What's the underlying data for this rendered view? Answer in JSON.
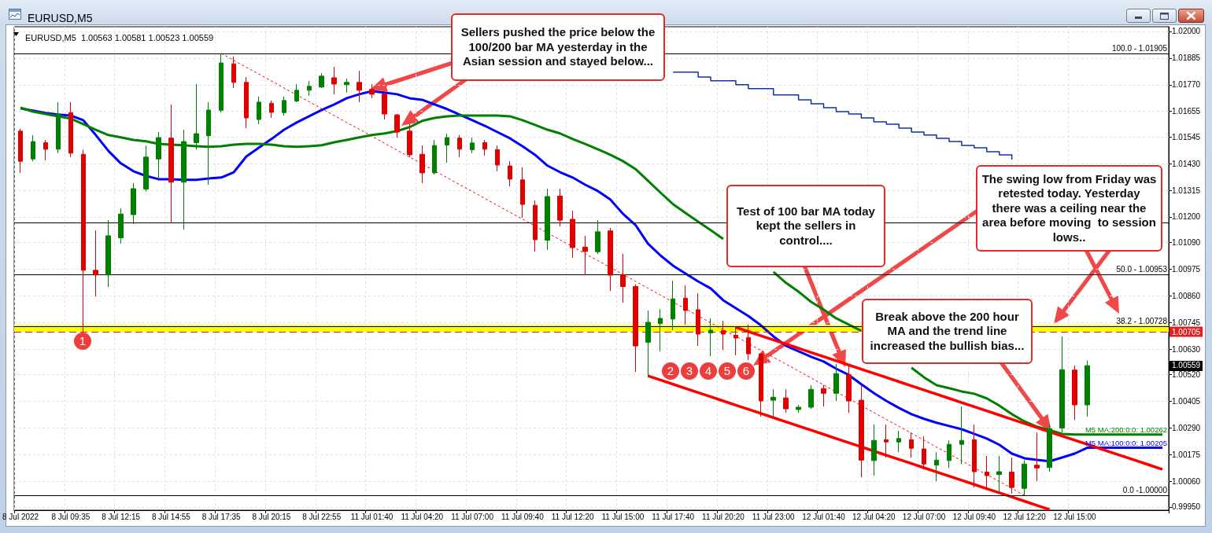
{
  "chart_data": {
    "type": "candlestick",
    "title": "EURUSD,M5",
    "subtitle": "EURUSD,M5  1.00563 1.00581 1.00523 1.00559",
    "categories": [
      "8 Jul 2022",
      null,
      null,
      null,
      "8 Jul 09:35",
      null,
      null,
      null,
      "8 Jul 12:15",
      null,
      null,
      null,
      "8 Jul 14:55",
      null,
      null,
      null,
      "8 Jul 17:35",
      null,
      null,
      null,
      "8 Jul 20:15",
      null,
      null,
      null,
      "8 Jul 22:55",
      null,
      null,
      null,
      "11 Jul 01:40",
      null,
      null,
      null,
      "11 Jul 04:20",
      null,
      null,
      null,
      "11 Jul 07:00",
      null,
      null,
      null,
      "11 Jul 09:40",
      null,
      null,
      null,
      "11 Jul 12:20",
      null,
      null,
      null,
      "11 Jul 15:00",
      null,
      null,
      null,
      "11 Jul 17:40",
      null,
      null,
      null,
      "11 Jul 20:20",
      null,
      null,
      null,
      "11 Jul 23:00",
      null,
      null,
      null,
      "12 Jul 01:40",
      null,
      null,
      null,
      "12 Jul 04:20",
      null,
      null,
      null,
      "12 Jul 07:00",
      null,
      null,
      null,
      "12 Jul 09:40",
      null,
      null,
      null,
      "12 Jul 12:20",
      null,
      null,
      null,
      "12 Jul 15:00",
      null,
      null,
      null,
      null,
      null,
      null,
      null
    ],
    "ohlc": [
      [
        1.0157,
        1.0158,
        1.0139,
        1.0144
      ],
      [
        1.0145,
        1.01553,
        1.0144,
        1.01525
      ],
      [
        1.0152,
        1.01532,
        1.01444,
        1.01492
      ],
      [
        1.01492,
        1.01695,
        1.01475,
        1.01644
      ],
      [
        1.0165,
        1.01695,
        1.01458,
        1.01475
      ],
      [
        1.0147,
        1.0149,
        1.00705,
        1.0097
      ],
      [
        1.0097,
        1.01142,
        1.00858,
        1.0095
      ],
      [
        1.0095,
        1.01186,
        1.00898,
        1.01119
      ],
      [
        1.0111,
        1.01237,
        1.01085,
        1.01213
      ],
      [
        1.0121,
        1.01346,
        1.0117,
        1.01322
      ],
      [
        1.0132,
        1.01508,
        1.0131,
        1.01458
      ],
      [
        1.0145,
        1.01566,
        1.01356,
        1.01542
      ],
      [
        1.0154,
        1.01685,
        1.01176,
        1.0135
      ],
      [
        1.0135,
        1.01576,
        1.01145,
        1.01525
      ],
      [
        1.0152,
        1.01773,
        1.01491,
        1.01559
      ],
      [
        1.0155,
        1.01695,
        1.01339,
        1.01661
      ],
      [
        1.0166,
        1.01905,
        1.0165,
        1.01864
      ],
      [
        1.0186,
        1.01892,
        1.01756,
        1.0178
      ],
      [
        1.0178,
        1.01803,
        1.01583,
        1.01627
      ],
      [
        1.0162,
        1.01719,
        1.016,
        1.01695
      ],
      [
        1.0169,
        1.01702,
        1.01627,
        1.01651
      ],
      [
        1.0165,
        1.01719,
        1.01637,
        1.01702
      ],
      [
        1.017,
        1.01773,
        1.01695,
        1.01746
      ],
      [
        1.01746,
        1.01786,
        1.01722,
        1.01763
      ],
      [
        1.0176,
        1.0182,
        1.01756,
        1.01807
      ],
      [
        1.018,
        1.01847,
        1.01729,
        1.01773
      ],
      [
        1.0177,
        1.01797,
        1.01736,
        1.0178
      ],
      [
        1.0178,
        1.0183,
        1.01695,
        1.01746
      ],
      [
        1.0175,
        1.01773,
        1.01712,
        1.01729
      ],
      [
        1.0173,
        1.0174,
        1.0162,
        1.01644
      ],
      [
        1.0164,
        1.01644,
        1.01542,
        1.01566
      ],
      [
        1.0157,
        1.016,
        1.01458,
        1.01468
      ],
      [
        1.0147,
        1.01508,
        1.01346,
        1.0139
      ],
      [
        1.0139,
        1.01532,
        1.01383,
        1.01508
      ],
      [
        1.0151,
        1.01559,
        1.01434,
        1.01542
      ],
      [
        1.0154,
        1.01553,
        1.01458,
        1.01492
      ],
      [
        1.0149,
        1.01542,
        1.01475,
        1.01519
      ],
      [
        1.0152,
        1.01532,
        1.01464,
        1.01492
      ],
      [
        1.0149,
        1.01508,
        1.01397,
        1.01424
      ],
      [
        1.0142,
        1.01441,
        1.01332,
        1.01363
      ],
      [
        1.0136,
        1.01414,
        1.01197,
        1.01254
      ],
      [
        1.0125,
        1.01271,
        1.01051,
        1.01102
      ],
      [
        1.011,
        1.01322,
        1.01058,
        1.01288
      ],
      [
        1.0129,
        1.01322,
        1.01159,
        1.01186
      ],
      [
        1.0119,
        1.01227,
        1.01024,
        1.01068
      ],
      [
        1.0107,
        1.01119,
        1.00949,
        1.01051
      ],
      [
        1.0105,
        1.01186,
        1.0104,
        1.01136
      ],
      [
        1.0114,
        1.01153,
        1.00881,
        1.00949
      ],
      [
        1.0095,
        1.01041,
        1.0083,
        1.009
      ],
      [
        1.009,
        1.0091,
        1.00532,
        1.00644
      ],
      [
        1.0066,
        1.00797,
        1.00508,
        1.00746
      ],
      [
        1.0074,
        1.00803,
        1.0062,
        1.00763
      ],
      [
        1.0076,
        1.00925,
        1.00712,
        1.00847
      ],
      [
        1.0085,
        1.00905,
        1.00736,
        1.00797
      ],
      [
        1.008,
        1.00871,
        1.00644,
        1.00695
      ],
      [
        1.007,
        1.00763,
        1.006,
        1.00712
      ],
      [
        1.0071,
        1.00753,
        1.00627,
        1.00695
      ],
      [
        1.0069,
        1.00729,
        1.00603,
        1.00678
      ],
      [
        1.0068,
        1.00736,
        1.00583,
        1.0061
      ],
      [
        1.0061,
        1.00615,
        1.00339,
        1.00407
      ],
      [
        1.0041,
        1.00457,
        1.00332,
        1.00423
      ],
      [
        1.0042,
        1.00457,
        1.00356,
        1.00373
      ],
      [
        1.0037,
        1.0039,
        1.00356,
        1.0038
      ],
      [
        1.0038,
        1.00475,
        1.00373,
        1.00457
      ],
      [
        1.0046,
        1.00475,
        1.00383,
        1.0044
      ],
      [
        1.0044,
        1.00566,
        1.00407,
        1.00525
      ],
      [
        1.0052,
        1.00559,
        1.00356,
        1.00407
      ],
      [
        1.0041,
        1.00475,
        1.00078,
        1.00152
      ],
      [
        1.0015,
        1.00305,
        1.00085,
        1.00237
      ],
      [
        1.0024,
        1.00305,
        1.00163,
        1.0023
      ],
      [
        1.0023,
        1.00278,
        1.00186,
        1.00245
      ],
      [
        1.0024,
        1.00271,
        1.00163,
        1.00203
      ],
      [
        1.002,
        1.00254,
        1.00112,
        1.00135
      ],
      [
        1.0013,
        1.00186,
        1.00061,
        1.00152
      ],
      [
        1.0015,
        1.00237,
        1.00118,
        1.0022
      ],
      [
        1.0022,
        1.00383,
        1.00135,
        1.00237
      ],
      [
        1.0024,
        1.00305,
        1.00034,
        1.00102
      ],
      [
        1.001,
        1.0017,
        1.00034,
        1.00085
      ],
      [
        1.0009,
        1.0017,
        1.00007,
        1.00102
      ],
      [
        1.001,
        1.00163,
        1.00007,
        1.00034
      ],
      [
        1.0003,
        1.00152,
        1.0,
        1.00135
      ],
      [
        1.0013,
        1.00271,
        1.00061,
        1.00118
      ],
      [
        1.0012,
        1.00305,
        1.00102,
        1.00288
      ],
      [
        1.0029,
        1.00685,
        1.00271,
        1.00542
      ],
      [
        1.0054,
        1.00559,
        1.00325,
        1.0039
      ],
      [
        1.0039,
        1.00581,
        1.00339,
        1.00559
      ],
      null,
      null,
      null,
      null,
      null,
      null
    ],
    "colors": [
      "#e00000",
      "#008000",
      "#e00000",
      "#008000",
      "#e00000",
      "#e00000",
      "#e00000",
      "#008000",
      "#008000",
      "#008000",
      "#008000",
      "#008000",
      "#e00000",
      "#008000",
      "#008000",
      "#008000",
      "#008000",
      "#e00000",
      "#e00000",
      "#008000",
      "#e00000",
      "#008000",
      "#008000",
      "#008000",
      "#008000",
      "#e00000",
      "#008000",
      "#e00000",
      "#e00000",
      "#e00000",
      "#e00000",
      "#e00000",
      "#e00000",
      "#008000",
      "#008000",
      "#e00000",
      "#008000",
      "#e00000",
      "#e00000",
      "#e00000",
      "#e00000",
      "#e00000",
      "#008000",
      "#e00000",
      "#e00000",
      "#e00000",
      "#008000",
      "#e00000",
      "#e00000",
      "#e00000",
      "#008000",
      "#008000",
      "#008000",
      "#e00000",
      "#e00000",
      "#008000",
      "#e00000",
      "#e00000",
      "#e00000",
      "#e00000",
      "#008000",
      "#e00000",
      "#008000",
      "#008000",
      "#e00000",
      "#008000",
      "#e00000",
      "#e00000",
      "#008000",
      "#e00000",
      "#008000",
      "#e00000",
      "#e00000",
      "#008000",
      "#008000",
      "#008000",
      "#e00000",
      "#e00000",
      "#008000",
      "#e00000",
      "#008000",
      "#e00000",
      "#008000",
      "#008000",
      "#e00000",
      "#008000",
      null,
      null,
      null,
      null,
      null,
      null
    ],
    "series": [
      {
        "name": "M5 MA:100:0:0: 1.00205",
        "type": "line",
        "color": "#0000ff",
        "values": [
          1.01668,
          1.01658,
          1.01648,
          1.01641,
          1.01637,
          1.01617,
          1.01553,
          1.01485,
          1.01431,
          1.01397,
          1.01377,
          1.01363,
          1.01363,
          1.0136,
          1.0136,
          1.01366,
          1.0137,
          1.01393,
          1.01461,
          1.01499,
          1.01536,
          1.01576,
          1.01607,
          1.01634,
          1.01661,
          1.01685,
          1.01712,
          1.01729,
          1.01742,
          1.01736,
          1.01729,
          1.01712,
          1.01705,
          1.01685,
          1.01665,
          1.01641,
          1.01617,
          1.01593,
          1.01566,
          1.01539,
          1.01505,
          1.01468,
          1.01421,
          1.01393,
          1.0137,
          1.01339,
          1.01312,
          1.01275,
          1.01214,
          1.01166,
          1.01085,
          1.01034,
          1.0099,
          1.00956,
          1.00922,
          1.00892,
          1.00841,
          1.00807,
          1.00773,
          1.00733,
          1.00685,
          1.00645,
          1.00621,
          1.00597,
          1.00577,
          1.00546,
          1.00519,
          1.00479,
          1.00441,
          1.00407,
          1.00377,
          1.0035,
          1.0033,
          1.00313,
          1.00299,
          1.00285,
          1.00265,
          1.00245,
          1.00218,
          1.0018,
          1.0016,
          1.00153,
          1.00147,
          1.00163,
          1.0018,
          1.00205,
          1.00205,
          1.00205,
          1.00205,
          1.00205,
          1.00205,
          1.00205
        ]
      },
      {
        "name": "M5 MA:200:0:0: 1.00262",
        "type": "line",
        "color": "#008000",
        "values": [
          1.01671,
          1.01654,
          1.01644,
          1.01634,
          1.01624,
          1.016,
          1.01576,
          1.01553,
          1.01543,
          1.01532,
          1.01526,
          1.01515,
          1.01512,
          1.01509,
          1.01505,
          1.01502,
          1.01505,
          1.01512,
          1.01515,
          1.01515,
          1.01512,
          1.01505,
          1.01502,
          1.01505,
          1.01509,
          1.01522,
          1.01532,
          1.01543,
          1.01553,
          1.0156,
          1.0157,
          1.01587,
          1.01614,
          1.01627,
          1.01634,
          1.01637,
          1.01637,
          1.01637,
          1.01637,
          1.01634,
          1.01617,
          1.01597,
          1.01576,
          1.0156,
          1.01536,
          1.01515,
          1.01492,
          1.01468,
          1.01441,
          1.01407,
          1.01356,
          1.01305,
          1.01255,
          1.01217,
          1.0118,
          1.01143,
          1.01105,
          null,
          null,
          null,
          1.00963,
          1.00916,
          1.00878,
          1.00834,
          1.00801,
          1.00763,
          1.00736,
          1.00709,
          null,
          null,
          null,
          1.0055,
          1.00509,
          1.00475,
          1.00462,
          1.00448,
          1.00438,
          1.00418,
          1.00387,
          1.0035,
          1.00319,
          1.00296,
          1.00282,
          1.00265,
          1.00262,
          1.00262,
          1.00262,
          1.00262,
          1.00262,
          1.00262,
          1.00262,
          1.00262
        ]
      },
      {
        "type": "step",
        "color": "#1030b0",
        "values": [
          null,
          null,
          null,
          null,
          null,
          null,
          null,
          null,
          null,
          null,
          null,
          null,
          null,
          null,
          null,
          null,
          null,
          null,
          null,
          null,
          null,
          null,
          null,
          null,
          null,
          null,
          null,
          null,
          null,
          null,
          null,
          null,
          null,
          null,
          null,
          null,
          null,
          null,
          null,
          null,
          null,
          null,
          null,
          null,
          null,
          null,
          null,
          null,
          null,
          null,
          null,
          null,
          1.01824,
          1.01824,
          1.01803,
          1.01787,
          1.01787,
          1.0177,
          1.01753,
          1.01753,
          1.01726,
          1.01726,
          1.01705,
          1.01688,
          1.01671,
          1.01654,
          1.01644,
          1.01627,
          1.0161,
          1.016,
          1.01583,
          1.01566,
          1.01553,
          1.01539,
          1.01525,
          1.01508,
          1.01498,
          1.01481,
          1.01468,
          1.01447,
          null,
          null,
          null,
          null,
          null,
          null,
          null,
          null,
          null,
          null,
          null,
          null
        ]
      },
      {
        "type": "line",
        "color": "#ff0000",
        "values": [
          null,
          null,
          null,
          null,
          null,
          null,
          null,
          null,
          null,
          null,
          null,
          null,
          null,
          null,
          null,
          null,
          null,
          null,
          null,
          null,
          null,
          null,
          null,
          null,
          null,
          null,
          null,
          null,
          null,
          null,
          null,
          null,
          null,
          null,
          null,
          null,
          null,
          null,
          null,
          null,
          null,
          null,
          null,
          null,
          null,
          null,
          null,
          null,
          null,
          null,
          null,
          null,
          null,
          null,
          null,
          null,
          null,
          1.00724,
          1.00706,
          1.00688,
          1.0067,
          1.00652,
          1.00634,
          1.00616,
          1.00598,
          1.0058,
          1.00562,
          1.00544,
          1.00526,
          1.00508,
          1.0049,
          1.00472,
          1.00454,
          1.00436,
          1.00418,
          1.004,
          1.00382,
          1.00364,
          1.00346,
          1.00328,
          1.0031,
          1.00292,
          1.00274,
          1.00256,
          1.00238,
          1.0022,
          1.00202,
          1.00184,
          1.00166,
          1.00148,
          1.0013,
          1.00112
        ]
      },
      {
        "type": "line",
        "color": "#ff0000",
        "values": [
          null,
          null,
          null,
          null,
          null,
          null,
          null,
          null,
          null,
          null,
          null,
          null,
          null,
          null,
          null,
          null,
          null,
          null,
          null,
          null,
          null,
          null,
          null,
          null,
          null,
          null,
          null,
          null,
          null,
          null,
          null,
          null,
          null,
          null,
          null,
          null,
          null,
          null,
          null,
          null,
          null,
          null,
          null,
          null,
          null,
          null,
          null,
          null,
          null,
          null,
          1.00515,
          1.00497,
          1.00479,
          1.00461,
          1.00443,
          1.00425,
          1.00407,
          1.00389,
          1.00371,
          1.00353,
          1.00335,
          1.00317,
          1.00299,
          1.00281,
          1.00263,
          1.00245,
          1.00227,
          1.00209,
          1.00191,
          1.00173,
          1.00155,
          1.00137,
          1.00119,
          1.00101,
          1.00083,
          1.00065,
          1.00047,
          1.00029,
          1.00011,
          0.99993,
          0.99975,
          0.99957,
          0.99939,
          null,
          null,
          null,
          null,
          null,
          null,
          null,
          null,
          null
        ]
      },
      {
        "type": "line",
        "color": "#ff0000",
        "line_style": "dotted",
        "values": [
          null,
          null,
          null,
          null,
          null,
          null,
          null,
          null,
          null,
          null,
          null,
          null,
          null,
          null,
          null,
          null,
          1.01905,
          1.01875,
          1.01845,
          1.01816,
          1.01786,
          1.01756,
          1.01726,
          1.01697,
          1.01667,
          1.01637,
          1.01607,
          1.01578,
          1.01548,
          1.01518,
          1.01488,
          1.01458,
          1.01429,
          1.01399,
          1.01369,
          1.01339,
          1.0131,
          1.0128,
          1.0125,
          1.0122,
          1.01191,
          1.01161,
          1.01131,
          1.01101,
          1.01072,
          1.01042,
          1.01012,
          1.00982,
          1.00953,
          1.00923,
          1.00893,
          1.00863,
          1.00833,
          1.00804,
          1.00774,
          1.00744,
          1.00714,
          1.00685,
          1.00655,
          1.00625,
          1.00595,
          1.00566,
          1.00536,
          1.00506,
          1.00476,
          1.00446,
          1.00417,
          1.00387,
          1.00357,
          1.00327,
          1.00298,
          1.00268,
          1.00238,
          1.00208,
          1.00179,
          1.00149,
          1.00119,
          1.00089,
          1.0006,
          1.0003,
          1.0,
          null,
          null,
          null,
          null,
          null,
          null,
          null,
          null,
          null,
          null,
          null
        ]
      }
    ],
    "ylim": [
      0.99936,
      1.0202
    ],
    "yticks": [
      {
        "value": 1.02,
        "label": "1.02000"
      },
      1.01885,
      {
        "value": 1.0177,
        "label": "1.01770"
      },
      1.01655,
      1.01545,
      {
        "value": 1.0143,
        "label": "1.01430"
      },
      1.01315,
      {
        "value": 1.012,
        "label": "1.01200"
      },
      {
        "value": 1.0109,
        "label": "1.01090"
      },
      1.00975,
      {
        "value": 1.0086,
        "label": "1.00860"
      },
      1.00745,
      {
        "value": 1.0063,
        "label": "1.00630"
      },
      {
        "value": 1.0052,
        "label": "1.00520"
      },
      1.00405,
      {
        "value": 1.0029,
        "label": "1.00290"
      },
      1.00175,
      {
        "value": 1.0006,
        "label": "1.00060"
      },
      {
        "value": 0.9995,
        "label": "0.99950"
      }
    ],
    "grid": true,
    "ref_lines": [
      {
        "axis": "y",
        "value": 1.01905,
        "color": "#000000"
      },
      {
        "axis": "y",
        "value": 1.01177,
        "color": "#000000"
      },
      {
        "axis": "y",
        "value": 1.00953,
        "color": "#000000"
      },
      {
        "axis": "y",
        "value": 1.00728,
        "color": "#000000"
      },
      {
        "axis": "y",
        "value": 1.0,
        "color": "#000000"
      },
      {
        "axis": "y",
        "value": 1.00705,
        "label": "1.00705",
        "color": "#e02020",
        "line_style": "dashed"
      }
    ],
    "bands": [
      {
        "axis": "y",
        "from": 1.00705,
        "to": 1.00735,
        "color": "#ffff00"
      }
    ],
    "annotations": [
      "Sellers pushed the price below the 100/200 bar MA yesterday in the Asian session and stayed below...",
      "Test of 100 bar MA today kept the sellers in control....",
      "The swing low from Friday was retested today. Yesterday there was a ceiling near the area before moving  to session lows..",
      "Break above the 200 hour MA and the trend line increased the bullish bias...",
      "1",
      "2",
      "3",
      "4",
      "5",
      "6",
      {
        "text": "1.00559",
        "y": 1.00559
      },
      {
        "text": "100.0 - 1.01905",
        "y": 1.01905
      },
      {
        "text": "50.0 - 1.00953",
        "y": 1.00953
      },
      {
        "text": "38.2 - 1.00728",
        "y": 1.00728
      },
      {
        "text": "0.0 -1.00000",
        "y": 1.0
      }
    ]
  }
}
